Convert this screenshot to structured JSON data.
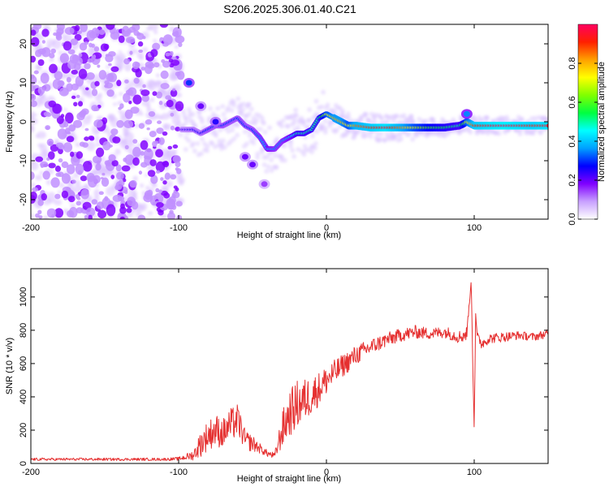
{
  "figure_title": "S206.2025.306.01.40.C21",
  "chart_data": [
    {
      "type": "heatmap",
      "title": "S206.2025.306.01.40.C21",
      "xlabel": "Height of straight line (km)",
      "ylabel": "Frequency (Hz)",
      "xlim": [
        -200,
        150
      ],
      "ylim": [
        -25,
        25
      ],
      "xticks": [
        -200,
        -100,
        0,
        100
      ],
      "yticks": [
        -20,
        -10,
        0,
        10,
        20
      ],
      "colorbar": {
        "label": "Normalized spectral amplitude",
        "range": [
          0,
          1
        ],
        "ticks": [
          0.0,
          0.2,
          0.4,
          0.6,
          0.8
        ],
        "colors": [
          "#ffffff",
          "#c8a0ff",
          "#8000ff",
          "#0000ff",
          "#00a0ff",
          "#00ffff",
          "#00ff40",
          "#80ff00",
          "#ffff00",
          "#ffa000",
          "#ff2000",
          "#ff0060"
        ]
      },
      "noise_region": {
        "x": [
          -200,
          -98
        ],
        "freq": [
          -25,
          25
        ],
        "amplitude": 0.1
      },
      "ridge": {
        "x": [
          -98,
          -90,
          -85,
          -80,
          -75,
          -70,
          -65,
          -60,
          -55,
          -50,
          -45,
          -40,
          -35,
          -30,
          -25,
          -20,
          -15,
          -10,
          -5,
          0,
          5,
          10,
          15,
          20,
          30,
          40,
          50,
          60,
          70,
          80,
          90,
          93,
          95,
          100,
          110,
          120,
          130,
          140,
          150
        ],
        "freq": [
          -2,
          -2,
          -3,
          -2,
          -1,
          -1,
          0,
          1,
          -1,
          -2,
          -4,
          -7,
          -7,
          -5,
          -4,
          -3,
          -3,
          -2,
          1,
          2,
          1,
          0,
          -1,
          -1,
          -1.5,
          -1.5,
          -1.5,
          -1.5,
          -1.5,
          -1.5,
          -1,
          -0.5,
          0,
          -1,
          -1,
          -1,
          -1,
          -1,
          -1
        ],
        "amplitude": [
          0.22,
          0.25,
          0.25,
          0.3,
          0.3,
          0.3,
          0.3,
          0.3,
          0.3,
          0.3,
          0.35,
          0.4,
          0.35,
          0.35,
          0.4,
          0.5,
          0.5,
          0.5,
          0.5,
          0.7,
          0.8,
          0.8,
          0.7,
          0.85,
          0.9,
          0.95,
          0.85,
          0.7,
          0.6,
          0.55,
          0.5,
          0.6,
          0.7,
          0.9,
          0.95,
          0.98,
          0.95,
          0.92,
          0.95
        ]
      },
      "blobs": [
        {
          "x": -93,
          "freq": 10,
          "amplitude": 0.3
        },
        {
          "x": -85,
          "freq": 4,
          "amplitude": 0.2
        },
        {
          "x": -75,
          "freq": 0,
          "amplitude": 0.25
        },
        {
          "x": -55,
          "freq": -9,
          "amplitude": 0.2
        },
        {
          "x": -50,
          "freq": -11,
          "amplitude": 0.2
        },
        {
          "x": -42,
          "freq": -16,
          "amplitude": 0.15
        },
        {
          "x": 95,
          "freq": 2,
          "amplitude": 0.35
        }
      ]
    },
    {
      "type": "line",
      "title": "",
      "xlabel": "Height of straight line (km)",
      "ylabel": "SNR (10 * v/v)",
      "xlim": [
        -200,
        150
      ],
      "ylim": [
        0,
        1170
      ],
      "xticks": [
        -200,
        -100,
        0,
        100
      ],
      "yticks": [
        0,
        200,
        400,
        600,
        800,
        1000
      ],
      "series": [
        {
          "name": "SNR",
          "color": "#e53030",
          "x": [
            -200,
            -150,
            -110,
            -100,
            -90,
            -85,
            -80,
            -75,
            -70,
            -65,
            -60,
            -55,
            -50,
            -45,
            -40,
            -35,
            -30,
            -25,
            -20,
            -15,
            -10,
            -5,
            0,
            10,
            20,
            30,
            40,
            50,
            60,
            70,
            80,
            90,
            95,
            98,
            99,
            100,
            101,
            102,
            105,
            110,
            120,
            130,
            140,
            150
          ],
          "y": [
            25,
            25,
            25,
            28,
            50,
            120,
            170,
            200,
            180,
            230,
            260,
            140,
            120,
            90,
            60,
            45,
            200,
            300,
            350,
            380,
            410,
            450,
            500,
            580,
            650,
            700,
            740,
            770,
            790,
            780,
            790,
            760,
            780,
            1100,
            600,
            200,
            900,
            760,
            720,
            750,
            760,
            770,
            760,
            780
          ],
          "noise": [
            8,
            8,
            8,
            10,
            30,
            80,
            90,
            100,
            90,
            100,
            100,
            60,
            50,
            30,
            20,
            20,
            110,
            140,
            150,
            130,
            120,
            100,
            90,
            70,
            60,
            50,
            45,
            40,
            40,
            35,
            35,
            40,
            45,
            0,
            0,
            0,
            0,
            30,
            35,
            30,
            30,
            25,
            25,
            25
          ]
        }
      ]
    }
  ]
}
